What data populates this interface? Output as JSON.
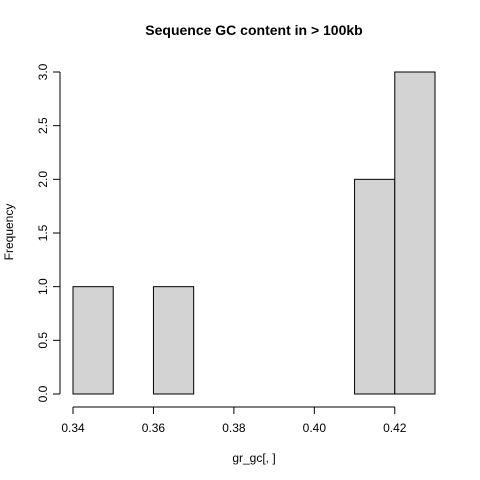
{
  "chart_data": {
    "type": "bar",
    "title": "Sequence GC content in > 100kb",
    "xlabel": "gr_gc[, ]",
    "ylabel": "Frequency",
    "xlim": [
      0.34,
      0.43
    ],
    "ylim": [
      0,
      3
    ],
    "x_ticks": [
      "0.34",
      "0.36",
      "0.38",
      "0.40",
      "0.42"
    ],
    "y_ticks": [
      "0.0",
      "0.5",
      "1.0",
      "1.5",
      "2.0",
      "2.5",
      "3.0"
    ],
    "bins": [
      {
        "from": 0.34,
        "to": 0.35,
        "count": 1
      },
      {
        "from": 0.35,
        "to": 0.36,
        "count": 0
      },
      {
        "from": 0.36,
        "to": 0.37,
        "count": 1
      },
      {
        "from": 0.37,
        "to": 0.38,
        "count": 0
      },
      {
        "from": 0.38,
        "to": 0.39,
        "count": 0
      },
      {
        "from": 0.39,
        "to": 0.4,
        "count": 0
      },
      {
        "from": 0.4,
        "to": 0.41,
        "count": 0
      },
      {
        "from": 0.41,
        "to": 0.42,
        "count": 2
      },
      {
        "from": 0.42,
        "to": 0.43,
        "count": 3
      }
    ],
    "bar_fill": "#d3d3d3",
    "bar_stroke": "#000000",
    "grid": false
  }
}
